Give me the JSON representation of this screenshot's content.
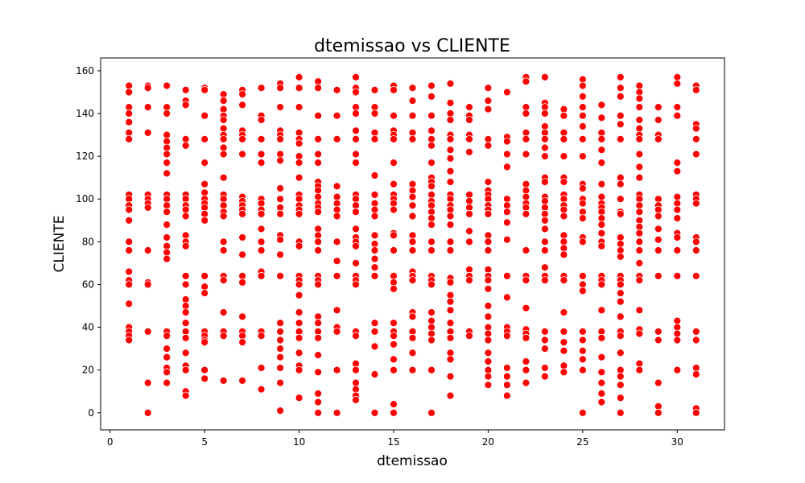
{
  "chart_data": {
    "type": "scatter",
    "title": "dtemissao vs CLIENTE",
    "xlabel": "dtemissao",
    "ylabel": "CLIENTE",
    "xlim": [
      -0.5,
      32.5
    ],
    "ylim": [
      -8,
      166
    ],
    "xticks": [
      0,
      5,
      10,
      15,
      20,
      25,
      30
    ],
    "yticks": [
      0,
      20,
      40,
      60,
      80,
      100,
      120,
      140,
      160
    ],
    "grid": false,
    "legend": "none",
    "marker_color": "#ff0000",
    "marker_edge_color": "#ffffff",
    "x_days": [
      1,
      2,
      3,
      4,
      5,
      6,
      7,
      8,
      9,
      10,
      11,
      12,
      13,
      14,
      15,
      16,
      17,
      18,
      19,
      20,
      21,
      22,
      23,
      24,
      25,
      26,
      27,
      28,
      29,
      30,
      31
    ],
    "y_by_day": [
      [
        153,
        150,
        143,
        140,
        136,
        131,
        128,
        102,
        100,
        97,
        95,
        90,
        80,
        76,
        66,
        62,
        60,
        51,
        40,
        38,
        36,
        34
      ],
      [
        153,
        152,
        143,
        131,
        102,
        100,
        98,
        96,
        76,
        61,
        60,
        38,
        14,
        0
      ],
      [
        153,
        143,
        140,
        130,
        127,
        124,
        121,
        117,
        112,
        102,
        100,
        97,
        94,
        88,
        82,
        78,
        75,
        72,
        38,
        36,
        30,
        26,
        21,
        19,
        14
      ],
      [
        151,
        146,
        144,
        128,
        125,
        102,
        100,
        97,
        95,
        92,
        83,
        80,
        78,
        64,
        60,
        53,
        50,
        47,
        42,
        38,
        35,
        28,
        22,
        20,
        10,
        8
      ],
      [
        152,
        151,
        139,
        128,
        117,
        107,
        103,
        100,
        98,
        96,
        93,
        90,
        64,
        59,
        56,
        38,
        36,
        34,
        33,
        20,
        16
      ],
      [
        149,
        146,
        142,
        139,
        137,
        133,
        130,
        128,
        124,
        121,
        110,
        102,
        100,
        97,
        94,
        92,
        80,
        76,
        64,
        62,
        47,
        38,
        36,
        15
      ],
      [
        151,
        149,
        144,
        132,
        130,
        128,
        121,
        101,
        99,
        97,
        95,
        93,
        82,
        74,
        64,
        61,
        45,
        38,
        36,
        33,
        15
      ],
      [
        152,
        139,
        137,
        128,
        121,
        117,
        100,
        98,
        95,
        93,
        86,
        80,
        76,
        66,
        64,
        38,
        36,
        21,
        11
      ],
      [
        154,
        152,
        143,
        132,
        130,
        128,
        121,
        118,
        105,
        100,
        96,
        93,
        83,
        81,
        74,
        64,
        42,
        38,
        34,
        30,
        26,
        21,
        14,
        1
      ],
      [
        157,
        152,
        143,
        131,
        128,
        126,
        120,
        117,
        110,
        102,
        100,
        97,
        95,
        93,
        80,
        78,
        64,
        62,
        60,
        55,
        47,
        42,
        38,
        35,
        28,
        22,
        20,
        7
      ],
      [
        155,
        152,
        139,
        128,
        121,
        117,
        108,
        106,
        104,
        101,
        98,
        96,
        94,
        86,
        83,
        80,
        76,
        64,
        62,
        60,
        45,
        42,
        38,
        35,
        27,
        19,
        9,
        5,
        0
      ],
      [
        151,
        139,
        128,
        106,
        101,
        98,
        95,
        92,
        80,
        71,
        64,
        48,
        40,
        38,
        20,
        0
      ],
      [
        157,
        152,
        150,
        143,
        140,
        132,
        128,
        121,
        117,
        102,
        100,
        97,
        94,
        86,
        82,
        80,
        78,
        70,
        64,
        62,
        60,
        38,
        36,
        23,
        20,
        14,
        11,
        8,
        6
      ],
      [
        151,
        143,
        140,
        131,
        128,
        111,
        102,
        98,
        95,
        92,
        83,
        79,
        76,
        72,
        68,
        64,
        42,
        38,
        31,
        18,
        0
      ],
      [
        153,
        151,
        139,
        132,
        130,
        128,
        117,
        107,
        102,
        100,
        98,
        95,
        84,
        83,
        76,
        64,
        61,
        58,
        42,
        38,
        36,
        32,
        25,
        20,
        4,
        0
      ],
      [
        152,
        146,
        139,
        131,
        128,
        107,
        104,
        101,
        97,
        92,
        83,
        80,
        76,
        66,
        64,
        62,
        47,
        45,
        38,
        35,
        28,
        20
      ],
      [
        153,
        148,
        139,
        132,
        128,
        125,
        117,
        110,
        108,
        106,
        102,
        99,
        97,
        94,
        91,
        88,
        80,
        76,
        64,
        62,
        60,
        47,
        43,
        40,
        37,
        34,
        20,
        0
      ],
      [
        154,
        145,
        140,
        137,
        130,
        128,
        123,
        119,
        113,
        108,
        102,
        100,
        97,
        95,
        92,
        88,
        80,
        76,
        63,
        61,
        55,
        52,
        48,
        42,
        38,
        35,
        28,
        25,
        17,
        8
      ],
      [
        143,
        139,
        137,
        130,
        128,
        122,
        102,
        99,
        96,
        93,
        85,
        80,
        67,
        64,
        62,
        38,
        36
      ],
      [
        152,
        146,
        142,
        128,
        125,
        108,
        104,
        102,
        100,
        97,
        95,
        93,
        83,
        80,
        76,
        67,
        64,
        62,
        58,
        50,
        45,
        40,
        37,
        34,
        28,
        24,
        20,
        17,
        13
      ],
      [
        150,
        129,
        127,
        121,
        115,
        100,
        97,
        94,
        89,
        81,
        64,
        54,
        40,
        38,
        36,
        21,
        17,
        13,
        8
      ],
      [
        157,
        155,
        143,
        140,
        131,
        128,
        121,
        107,
        104,
        101,
        98,
        96,
        93,
        76,
        64,
        62,
        49,
        39,
        37,
        35,
        24,
        20,
        14
      ],
      [
        157,
        145,
        143,
        140,
        134,
        131,
        128,
        124,
        120,
        110,
        108,
        101,
        99,
        96,
        93,
        90,
        86,
        80,
        76,
        68,
        64,
        62,
        38,
        34,
        30,
        21,
        17
      ],
      [
        142,
        139,
        131,
        128,
        120,
        110,
        108,
        102,
        100,
        97,
        95,
        92,
        83,
        80,
        77,
        74,
        64,
        62,
        47,
        38,
        33,
        29,
        22,
        19
      ],
      [
        156,
        153,
        148,
        143,
        139,
        134,
        128,
        120,
        107,
        105,
        100,
        98,
        94,
        91,
        82,
        80,
        64,
        60,
        57,
        38,
        34,
        29,
        25,
        20,
        0
      ],
      [
        144,
        138,
        131,
        128,
        123,
        117,
        107,
        101,
        98,
        96,
        94,
        91,
        88,
        84,
        80,
        78,
        64,
        62,
        60,
        48,
        38,
        35,
        26,
        19,
        14,
        9,
        5
      ],
      [
        157,
        152,
        148,
        139,
        135,
        128,
        110,
        107,
        100,
        94,
        93,
        82,
        79,
        76,
        73,
        64,
        62,
        60,
        56,
        52,
        45,
        38,
        36,
        28,
        20,
        17,
        13,
        7,
        0
      ],
      [
        153,
        150,
        147,
        143,
        137,
        133,
        130,
        128,
        121,
        115,
        110,
        102,
        100,
        97,
        94,
        90,
        87,
        84,
        80,
        76,
        70,
        64,
        62,
        48,
        39,
        37,
        23,
        20
      ],
      [
        143,
        137,
        130,
        128,
        100,
        97,
        95,
        92,
        86,
        81,
        76,
        64,
        38,
        34,
        14,
        3,
        0
      ],
      [
        157,
        154,
        143,
        139,
        117,
        113,
        101,
        98,
        95,
        91,
        84,
        82,
        76,
        64,
        43,
        40,
        37,
        34,
        20
      ],
      [
        153,
        151,
        135,
        133,
        128,
        121,
        102,
        100,
        98,
        82,
        80,
        76,
        64,
        38,
        34,
        21,
        18,
        2,
        0
      ]
    ]
  }
}
